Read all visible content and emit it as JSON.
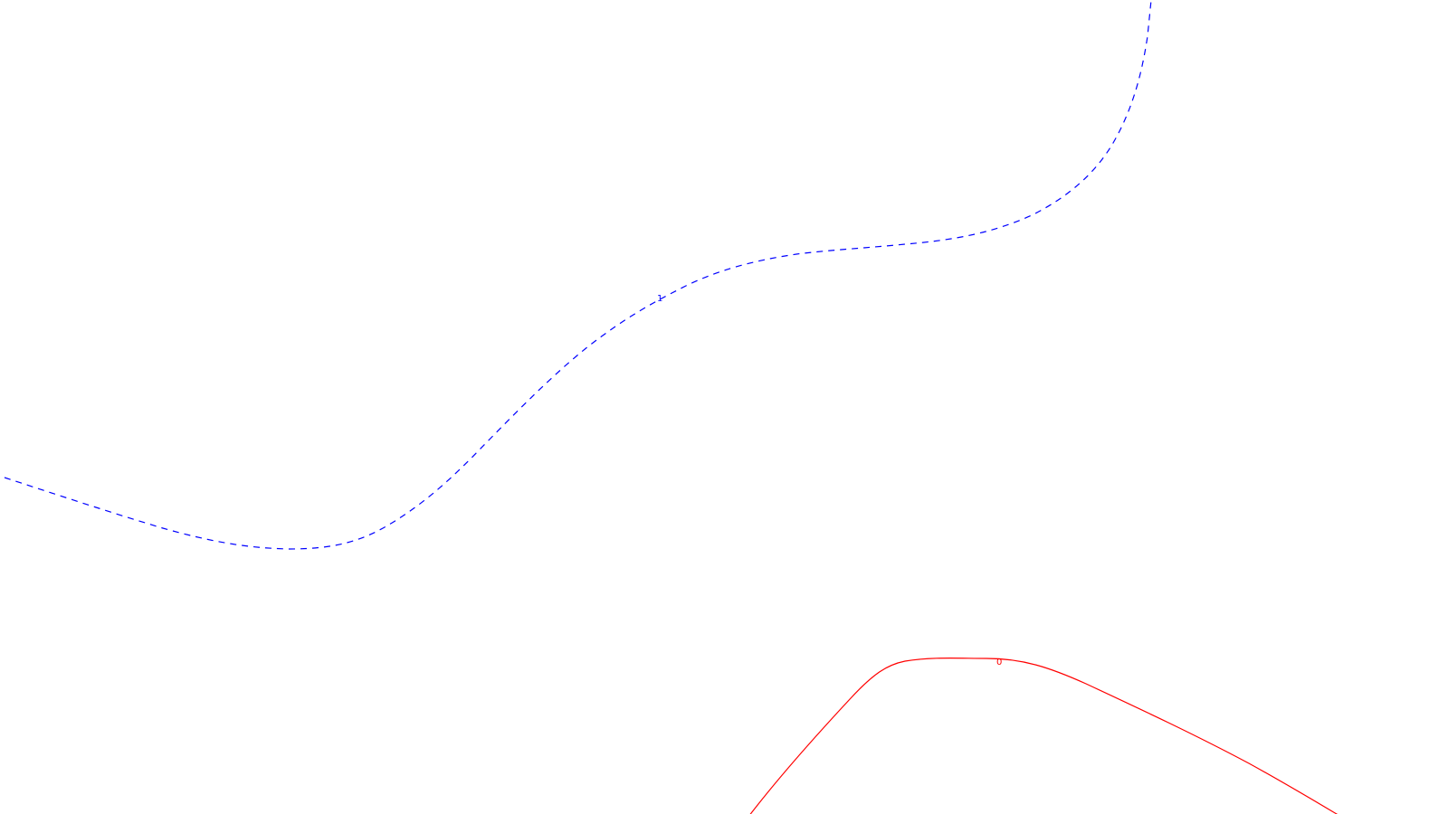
{
  "map": {
    "background_color": "#ffffff",
    "contours": [
      {
        "id": "contour-1",
        "label": "1",
        "color": "#0000ff",
        "line_style": "dashed"
      },
      {
        "id": "contour-0",
        "label": "0",
        "color": "#ff0000",
        "line_style": "solid"
      }
    ]
  }
}
